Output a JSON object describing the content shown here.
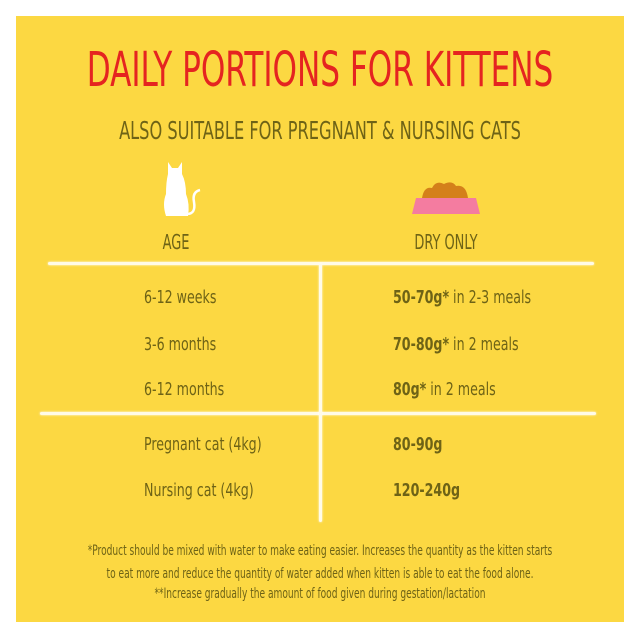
{
  "title": "DAILY PORTIONS FOR KITTENS",
  "subtitle": "ALSO SUITABLE FOR PREGNANT & NURSING CATS",
  "headers": {
    "age": "AGE",
    "dry": "DRY ONLY"
  },
  "icons": {
    "age": "cat-icon",
    "dry": "food-bowl-icon"
  },
  "rows": [
    {
      "age": "6-12 weeks",
      "amount": "50-70g*",
      "note": " in 2-3 meals"
    },
    {
      "age": "3-6 months",
      "amount": "70-80g*",
      "note": " in 2 meals"
    },
    {
      "age": "6-12 months",
      "amount": "80g*",
      "note": " in 2 meals"
    },
    {
      "age": "Pregnant cat (4kg)",
      "amount": "80-90g",
      "note": ""
    },
    {
      "age": "Nursing cat (4kg)",
      "amount": "120-240g",
      "note": ""
    }
  ],
  "footnotes": [
    "*Product should be mixed with water to make eating easier. Increases the quantity as the kitten starts",
    "to eat more and reduce the quantity of water added when kitten is able to eat the food alone.",
    "**Increase gradually the amount of food given during gestation/lactation"
  ],
  "colors": {
    "background": "#fcd842",
    "title": "#e52420",
    "text": "#6e6316",
    "bowl": "#f47ca0",
    "food": "#d4801a"
  }
}
